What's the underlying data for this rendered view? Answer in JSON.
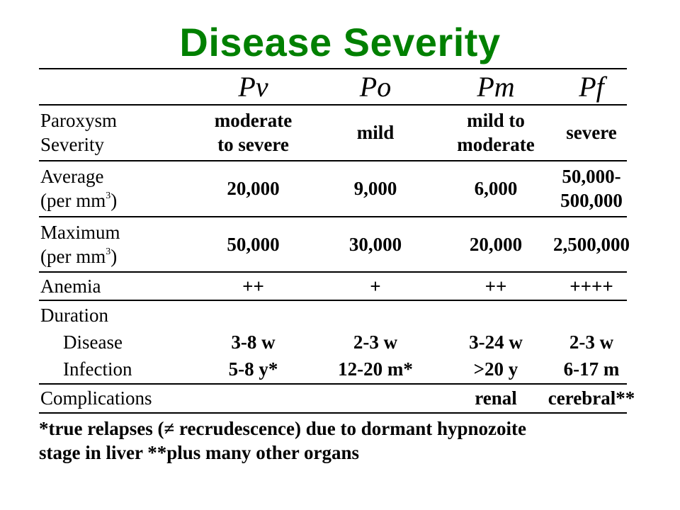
{
  "title": "Disease Severity",
  "columns": [
    "Pv",
    "Po",
    "Pm",
    "Pf"
  ],
  "rows": {
    "paroxysm": {
      "label_line1": "Paroxysm",
      "label_line2": "Severity",
      "values": [
        [
          "moderate",
          "to severe"
        ],
        [
          "mild"
        ],
        [
          "mild to",
          "moderate"
        ],
        [
          "severe"
        ]
      ]
    },
    "average": {
      "label_line1": "Average",
      "label_line2_pre": "(per mm",
      "label_line2_sup": "3",
      "label_line2_post": ")",
      "values": [
        [
          "20,000"
        ],
        [
          "9,000"
        ],
        [
          "6,000"
        ],
        [
          "50,000-",
          "500,000"
        ]
      ]
    },
    "maximum": {
      "label_line1": "Maximum",
      "label_line2_pre": "(per mm",
      "label_line2_sup": "3",
      "label_line2_post": ")",
      "values": [
        "50,000",
        "30,000",
        "20,000",
        "2,500,000"
      ]
    },
    "anemia": {
      "label": "Anemia",
      "values": [
        "++",
        "+",
        "++",
        "++++"
      ]
    },
    "duration": {
      "label": "Duration",
      "disease": {
        "label": "Disease",
        "values": [
          "3-8 w",
          "2-3 w",
          "3-24 w",
          "2-3 w"
        ]
      },
      "infection": {
        "label": "Infection",
        "values": [
          "5-8 y*",
          "12-20 m*",
          ">20 y",
          "6-17 m"
        ]
      }
    },
    "complications": {
      "label": "Complications",
      "values": [
        "",
        "",
        "renal",
        "cerebral**"
      ]
    }
  },
  "footnote": {
    "line1": "*true relapses (≠ recrudescence) due to dormant hypnozoite",
    "line2": "stage in liver  **plus many other organs"
  }
}
